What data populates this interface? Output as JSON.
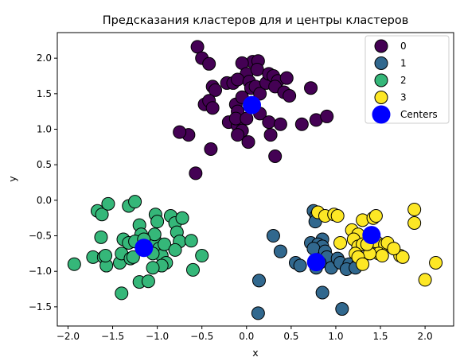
{
  "chart_data": {
    "type": "scatter",
    "title": "Предсказания кластеров для и центры кластеров",
    "xlabel": "x",
    "ylabel": "y",
    "xlim": [
      -2.12,
      2.32
    ],
    "ylim": [
      -1.77,
      2.36
    ],
    "xticks": [
      -2.0,
      -1.5,
      -1.0,
      -0.5,
      0.0,
      0.5,
      1.0,
      1.5,
      2.0
    ],
    "xtick_labels": [
      "−2.0",
      "−1.5",
      "−1.0",
      "−0.5",
      "0.0",
      "0.5",
      "1.0",
      "1.5",
      "2.0"
    ],
    "yticks": [
      -1.5,
      -1.0,
      -0.5,
      0.0,
      0.5,
      1.0,
      1.5,
      2.0
    ],
    "ytick_labels": [
      "−1.5",
      "−1.0",
      "−0.5",
      "0.0",
      "0.5",
      "1.0",
      "1.5",
      "2.0"
    ],
    "grid": false,
    "legend_position": "top-right",
    "series": [
      {
        "name": "0",
        "color": "#440154",
        "points": [
          [
            -0.55,
            2.16
          ],
          [
            -0.5,
            2.0
          ],
          [
            -0.42,
            1.92
          ],
          [
            0.07,
            1.95
          ],
          [
            0.13,
            1.96
          ],
          [
            -0.05,
            1.93
          ],
          [
            0.0,
            1.78
          ],
          [
            0.12,
            1.84
          ],
          [
            -0.38,
            1.6
          ],
          [
            -0.35,
            1.55
          ],
          [
            -0.22,
            1.65
          ],
          [
            -0.15,
            1.65
          ],
          [
            -0.1,
            1.7
          ],
          [
            0.03,
            1.67
          ],
          [
            0.05,
            1.58
          ],
          [
            0.1,
            1.6
          ],
          [
            0.15,
            1.5
          ],
          [
            0.22,
            1.65
          ],
          [
            0.25,
            1.78
          ],
          [
            0.3,
            1.75
          ],
          [
            0.35,
            1.68
          ],
          [
            0.32,
            1.6
          ],
          [
            0.42,
            1.52
          ],
          [
            0.45,
            1.72
          ],
          [
            0.48,
            1.47
          ],
          [
            0.72,
            1.58
          ],
          [
            -0.47,
            1.35
          ],
          [
            -0.42,
            1.4
          ],
          [
            -0.38,
            1.3
          ],
          [
            -0.12,
            1.35
          ],
          [
            -0.05,
            1.45
          ],
          [
            -0.1,
            1.25
          ],
          [
            -0.2,
            1.1
          ],
          [
            -0.1,
            1.05
          ],
          [
            -0.12,
            1.15
          ],
          [
            -0.05,
            0.98
          ],
          [
            0.0,
            1.15
          ],
          [
            0.15,
            1.22
          ],
          [
            0.25,
            1.1
          ],
          [
            0.38,
            1.07
          ],
          [
            0.62,
            1.07
          ],
          [
            0.78,
            1.13
          ],
          [
            0.9,
            1.18
          ],
          [
            -0.65,
            0.92
          ],
          [
            -0.75,
            0.96
          ],
          [
            -0.1,
            0.92
          ],
          [
            0.02,
            0.82
          ],
          [
            0.27,
            0.92
          ],
          [
            -0.4,
            0.72
          ],
          [
            0.32,
            0.62
          ],
          [
            -0.57,
            0.38
          ]
        ]
      },
      {
        "name": "1",
        "color": "#31688e",
        "points": [
          [
            0.75,
            -0.15
          ],
          [
            0.78,
            -0.22
          ],
          [
            0.77,
            -0.3
          ],
          [
            0.72,
            -0.6
          ],
          [
            0.85,
            -0.55
          ],
          [
            0.8,
            -0.62
          ],
          [
            0.85,
            -0.65
          ],
          [
            0.75,
            -0.68
          ],
          [
            0.88,
            -0.72
          ],
          [
            0.9,
            -0.8
          ],
          [
            0.82,
            -0.88
          ],
          [
            0.78,
            -0.95
          ],
          [
            0.95,
            -0.95
          ],
          [
            1.02,
            -0.82
          ],
          [
            1.05,
            -0.88
          ],
          [
            1.15,
            -0.9
          ],
          [
            1.12,
            -0.97
          ],
          [
            1.25,
            -0.9
          ],
          [
            1.22,
            -0.95
          ],
          [
            0.3,
            -0.5
          ],
          [
            0.38,
            -0.72
          ],
          [
            0.55,
            -0.88
          ],
          [
            0.6,
            -0.92
          ],
          [
            0.14,
            -1.13
          ],
          [
            0.85,
            -1.3
          ],
          [
            0.13,
            -1.59
          ],
          [
            1.07,
            -1.53
          ]
        ]
      },
      {
        "name": "2",
        "color": "#35b779",
        "points": [
          [
            -1.93,
            -0.9
          ],
          [
            -1.72,
            -0.8
          ],
          [
            -1.67,
            -0.15
          ],
          [
            -1.62,
            -0.2
          ],
          [
            -1.55,
            -0.05
          ],
          [
            -1.63,
            -0.52
          ],
          [
            -1.6,
            -0.8
          ],
          [
            -1.57,
            -0.92
          ],
          [
            -1.58,
            -0.78
          ],
          [
            -1.42,
            -0.88
          ],
          [
            -1.4,
            -0.75
          ],
          [
            -1.38,
            -0.55
          ],
          [
            -1.32,
            -0.6
          ],
          [
            -1.3,
            -0.82
          ],
          [
            -1.32,
            -0.08
          ],
          [
            -1.25,
            -0.02
          ],
          [
            -1.2,
            -0.35
          ],
          [
            -1.18,
            -0.48
          ],
          [
            -1.25,
            -0.58
          ],
          [
            -1.1,
            -0.62
          ],
          [
            -1.02,
            -0.58
          ],
          [
            -1.02,
            -0.2
          ],
          [
            -1.0,
            -0.3
          ],
          [
            -1.03,
            -0.48
          ],
          [
            -0.98,
            -0.68
          ],
          [
            -0.95,
            -0.78
          ],
          [
            -0.92,
            -0.62
          ],
          [
            -1.05,
            -0.75
          ],
          [
            -0.85,
            -0.22
          ],
          [
            -0.8,
            -0.32
          ],
          [
            -0.72,
            -0.25
          ],
          [
            -0.78,
            -0.45
          ],
          [
            -0.75,
            -0.58
          ],
          [
            -0.8,
            -0.7
          ],
          [
            -0.62,
            -0.57
          ],
          [
            -0.5,
            -0.78
          ],
          [
            -0.6,
            -0.98
          ],
          [
            -0.9,
            -0.88
          ],
          [
            -0.95,
            -0.92
          ],
          [
            -1.05,
            -0.95
          ],
          [
            -1.2,
            -1.15
          ],
          [
            -1.1,
            -1.14
          ],
          [
            -1.4,
            -1.31
          ],
          [
            -1.27,
            -0.8
          ],
          [
            -1.15,
            -0.55
          ]
        ]
      },
      {
        "name": "3",
        "color": "#fde725",
        "points": [
          [
            0.8,
            -0.17
          ],
          [
            0.88,
            -0.22
          ],
          [
            0.98,
            -0.2
          ],
          [
            1.02,
            -0.22
          ],
          [
            1.18,
            -0.42
          ],
          [
            1.25,
            -0.48
          ],
          [
            1.3,
            -0.28
          ],
          [
            1.42,
            -0.25
          ],
          [
            1.45,
            -0.22
          ],
          [
            1.88,
            -0.13
          ],
          [
            1.88,
            -0.32
          ],
          [
            1.05,
            -0.6
          ],
          [
            1.2,
            -0.55
          ],
          [
            1.25,
            -0.65
          ],
          [
            1.3,
            -0.62
          ],
          [
            1.45,
            -0.58
          ],
          [
            1.55,
            -0.62
          ],
          [
            1.58,
            -0.6
          ],
          [
            1.48,
            -0.75
          ],
          [
            1.52,
            -0.78
          ],
          [
            1.38,
            -0.75
          ],
          [
            1.35,
            -0.62
          ],
          [
            1.22,
            -0.75
          ],
          [
            1.25,
            -0.8
          ],
          [
            1.3,
            -0.9
          ],
          [
            1.72,
            -0.78
          ],
          [
            1.75,
            -0.8
          ],
          [
            1.65,
            -0.68
          ],
          [
            2.12,
            -0.88
          ],
          [
            2.0,
            -1.12
          ]
        ]
      }
    ],
    "centers": {
      "name": "Centers",
      "color": "#0000ff",
      "points": [
        [
          0.06,
          1.34
        ],
        [
          0.78,
          -0.87
        ],
        [
          -1.15,
          -0.67
        ],
        [
          1.4,
          -0.49
        ]
      ]
    }
  }
}
